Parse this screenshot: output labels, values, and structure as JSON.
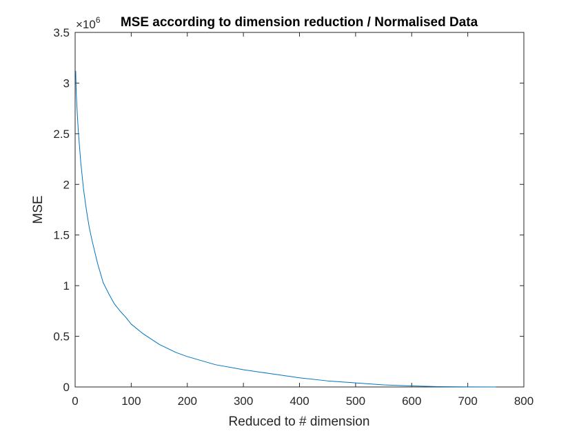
{
  "chart_data": {
    "type": "line",
    "title": "MSE according to dimension reduction / Normalised Data",
    "xlabel": "Reduced to # dimension",
    "ylabel": "MSE",
    "xlim": [
      0,
      800
    ],
    "ylim": [
      0,
      3.5
    ],
    "y_exponent_label": "×10",
    "y_exponent_power": "6",
    "x_ticks": [
      0,
      100,
      200,
      300,
      400,
      500,
      600,
      700,
      800
    ],
    "x_tick_labels": [
      "0",
      "100",
      "200",
      "300",
      "400",
      "500",
      "600",
      "700",
      "800"
    ],
    "y_ticks": [
      0,
      0.5,
      1,
      1.5,
      2,
      2.5,
      3,
      3.5
    ],
    "y_tick_labels": [
      "0",
      "0.5",
      "1",
      "1.5",
      "2",
      "2.5",
      "3",
      "3.5"
    ],
    "grid": false,
    "line_color": "#0072BD",
    "series": [
      {
        "x": [
          1,
          2,
          4,
          6,
          8,
          10,
          15,
          20,
          25,
          30,
          40,
          50,
          60,
          70,
          80,
          90,
          100,
          120,
          150,
          180,
          200,
          250,
          300,
          350,
          400,
          450,
          500,
          550,
          600,
          650,
          700,
          750
        ],
        "values": [
          3.12,
          2.9,
          2.68,
          2.5,
          2.36,
          2.22,
          1.95,
          1.75,
          1.58,
          1.45,
          1.22,
          1.03,
          0.92,
          0.82,
          0.75,
          0.69,
          0.62,
          0.53,
          0.42,
          0.34,
          0.3,
          0.22,
          0.17,
          0.13,
          0.09,
          0.06,
          0.04,
          0.02,
          0.01,
          0.003,
          0.001,
          0.0
        ]
      }
    ]
  }
}
